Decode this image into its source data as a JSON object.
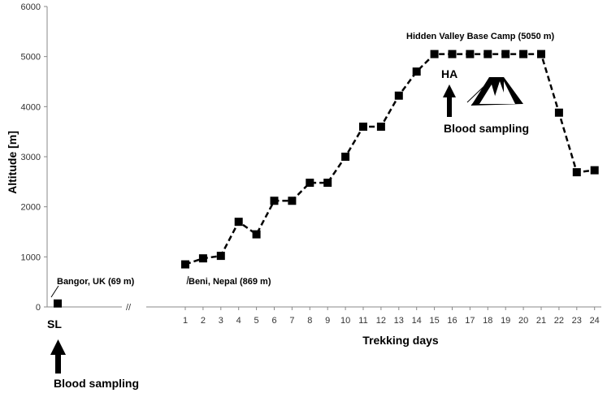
{
  "chart_data": {
    "type": "line",
    "xlabel": "Trekking days",
    "ylabel": "Altitude [m]",
    "ylim": [
      0,
      6000
    ],
    "yticks": [
      0,
      1000,
      2000,
      3000,
      4000,
      5000,
      6000
    ],
    "xticks": [
      "1",
      "2",
      "3",
      "4",
      "5",
      "6",
      "7",
      "8",
      "9",
      "10",
      "11",
      "12",
      "13",
      "14",
      "15",
      "16",
      "17",
      "18",
      "19",
      "20",
      "21",
      "22",
      "23",
      "24"
    ],
    "baseline": {
      "label": "SL",
      "value": 69
    },
    "series": [
      {
        "x": [
          1,
          2,
          3,
          4,
          5,
          6,
          7,
          8,
          9,
          10,
          11,
          12,
          13,
          14,
          15,
          16,
          17,
          18,
          19,
          20,
          21,
          22,
          23,
          24
        ],
        "values": [
          850,
          970,
          1020,
          1700,
          1450,
          2120,
          2120,
          2480,
          2480,
          3000,
          3600,
          3600,
          4220,
          4700,
          5050,
          5050,
          5050,
          5050,
          5050,
          5050,
          5050,
          3880,
          2690,
          2730
        ]
      }
    ],
    "axis_break": "//",
    "annotations": {
      "bangor": "Bangor, UK (69 m)",
      "beni": "Beni, Nepal (869 m)",
      "hidden_valley": "Hidden Valley Base Camp (5050 m)",
      "ha": "HA",
      "blood_sampling_ha": "Blood sampling",
      "blood_sampling_sl": "Blood sampling"
    }
  }
}
